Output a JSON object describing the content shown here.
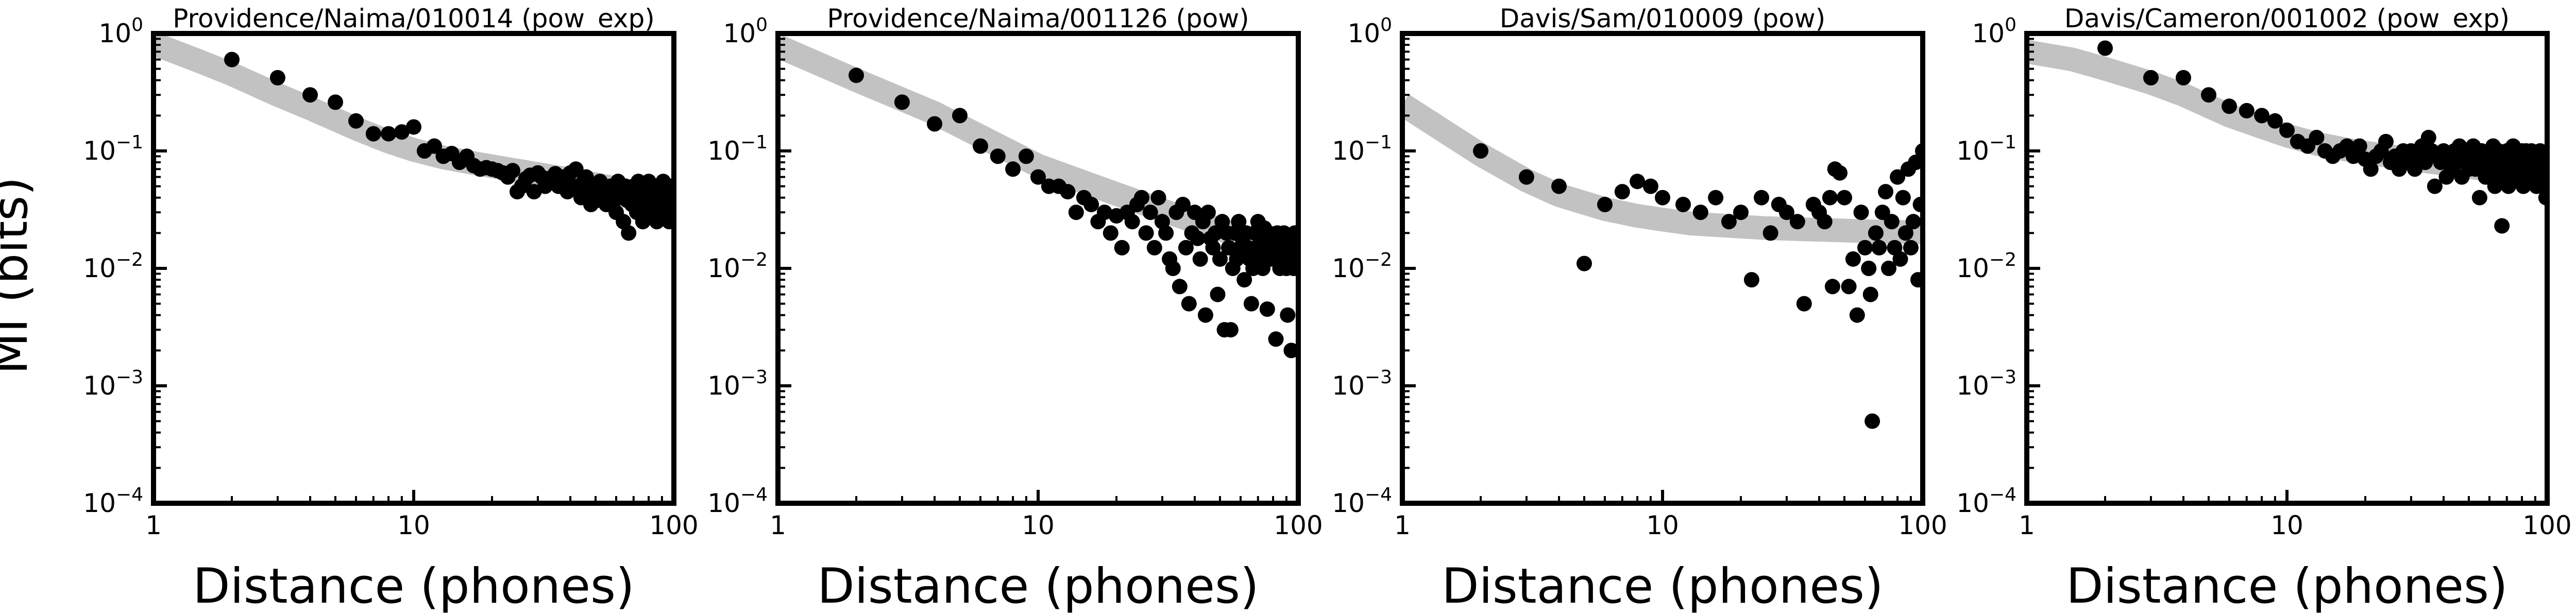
{
  "figure": {
    "ylabel": "MI (bits)"
  },
  "chart_data": [
    {
      "type": "scatter",
      "title": "Providence/Naima/010014 (pow_exp)",
      "xlabel": "Distance (phones)",
      "ylabel": "MI (bits)",
      "xscale": "log",
      "yscale": "log",
      "xlim": [
        1,
        100
      ],
      "ylim": [
        0.0001,
        1
      ],
      "x_ticks": [
        "1",
        "10",
        "100"
      ],
      "y_ticks": [
        [
          "10",
          "0"
        ],
        [
          "10",
          "−1"
        ],
        [
          "10",
          "−2"
        ],
        [
          "10",
          "−3"
        ],
        [
          "10",
          "−4"
        ]
      ],
      "fit": {
        "x": [
          1,
          1.5,
          2,
          3,
          4,
          6,
          8,
          10,
          13,
          18,
          25,
          35,
          50,
          70,
          100
        ],
        "y": [
          0.82,
          0.58,
          0.45,
          0.3,
          0.23,
          0.155,
          0.12,
          0.102,
          0.088,
          0.077,
          0.068,
          0.06,
          0.052,
          0.045,
          0.037
        ],
        "color": "#c2c2c2"
      },
      "points": {
        "x": [
          2,
          3,
          4,
          5,
          6,
          7,
          8,
          9,
          10,
          11,
          12,
          13,
          14,
          15,
          16,
          17,
          18,
          19,
          20,
          21,
          22,
          23,
          24,
          25,
          26,
          27,
          28,
          29,
          30,
          31,
          32,
          33,
          34,
          35,
          36,
          37,
          38,
          39,
          40,
          41,
          42,
          43,
          44,
          45,
          46,
          47,
          48,
          49,
          50,
          51,
          52,
          53,
          54,
          55,
          56,
          57,
          58,
          59,
          60,
          61,
          62,
          63,
          64,
          65,
          66,
          67,
          68,
          69,
          70,
          71,
          72,
          73,
          74,
          75,
          76,
          77,
          78,
          79,
          80,
          81,
          82,
          83,
          84,
          85,
          86,
          87,
          88,
          89,
          90,
          91,
          92,
          93,
          94,
          95,
          96,
          97,
          98,
          99,
          100
        ],
        "y": [
          0.6,
          0.42,
          0.3,
          0.26,
          0.18,
          0.14,
          0.14,
          0.145,
          0.16,
          0.1,
          0.11,
          0.09,
          0.095,
          0.08,
          0.09,
          0.075,
          0.07,
          0.072,
          0.07,
          0.068,
          0.065,
          0.06,
          0.068,
          0.045,
          0.05,
          0.058,
          0.062,
          0.045,
          0.065,
          0.06,
          0.05,
          0.058,
          0.055,
          0.064,
          0.05,
          0.06,
          0.055,
          0.045,
          0.065,
          0.05,
          0.07,
          0.048,
          0.04,
          0.055,
          0.06,
          0.045,
          0.035,
          0.05,
          0.042,
          0.038,
          0.055,
          0.05,
          0.045,
          0.035,
          0.04,
          0.05,
          0.045,
          0.038,
          0.03,
          0.055,
          0.045,
          0.04,
          0.025,
          0.05,
          0.038,
          0.02,
          0.045,
          0.035,
          0.05,
          0.04,
          0.03,
          0.055,
          0.045,
          0.035,
          0.025,
          0.05,
          0.04,
          0.045,
          0.055,
          0.03,
          0.04,
          0.05,
          0.035,
          0.045,
          0.025,
          0.04,
          0.05,
          0.03,
          0.038,
          0.055,
          0.045,
          0.035,
          0.03,
          0.042,
          0.025,
          0.05,
          0.035,
          0.03,
          0.045
        ]
      }
    },
    {
      "type": "scatter",
      "title": "Providence/Naima/001126 (pow)",
      "xlabel": "Distance (phones)",
      "ylabel": "",
      "xscale": "log",
      "yscale": "log",
      "xlim": [
        1,
        100
      ],
      "ylim": [
        0.0001,
        1
      ],
      "x_ticks": [
        "1",
        "10",
        "100"
      ],
      "y_ticks": [
        [
          "10",
          "0"
        ],
        [
          "10",
          "−1"
        ],
        [
          "10",
          "−2"
        ],
        [
          "10",
          "−3"
        ],
        [
          "10",
          "−4"
        ]
      ],
      "fit": {
        "x": [
          1,
          2,
          4,
          10,
          20,
          40,
          70,
          100
        ],
        "y": [
          0.78,
          0.4,
          0.21,
          0.075,
          0.043,
          0.025,
          0.017,
          0.014
        ],
        "color": "#c2c2c2"
      },
      "points": {
        "x": [
          2,
          3,
          4,
          5,
          6,
          7,
          8,
          9,
          10,
          11,
          12,
          13,
          14,
          15,
          16,
          17,
          18,
          19,
          20,
          21,
          22,
          23,
          24,
          25,
          26,
          27,
          28,
          29,
          30,
          31,
          32,
          33,
          34,
          35,
          36,
          37,
          38,
          39,
          40,
          41,
          42,
          43,
          44,
          45,
          46,
          47,
          48,
          49,
          50,
          51,
          52,
          53,
          54,
          55,
          56,
          57,
          58,
          59,
          60,
          61,
          62,
          63,
          64,
          65,
          66,
          67,
          68,
          69,
          70,
          71,
          72,
          73,
          74,
          75,
          76,
          77,
          78,
          79,
          80,
          81,
          82,
          83,
          84,
          85,
          86,
          87,
          88,
          89,
          90,
          91,
          92,
          93,
          94,
          95,
          96,
          97,
          98,
          99,
          100
        ],
        "y": [
          0.44,
          0.26,
          0.17,
          0.2,
          0.11,
          0.09,
          0.07,
          0.09,
          0.06,
          0.05,
          0.05,
          0.045,
          0.03,
          0.04,
          0.035,
          0.025,
          0.03,
          0.02,
          0.028,
          0.015,
          0.03,
          0.025,
          0.035,
          0.04,
          0.02,
          0.03,
          0.015,
          0.04,
          0.025,
          0.02,
          0.012,
          0.01,
          0.03,
          0.007,
          0.035,
          0.015,
          0.005,
          0.02,
          0.03,
          0.018,
          0.012,
          0.025,
          0.004,
          0.03,
          0.018,
          0.015,
          0.02,
          0.006,
          0.012,
          0.025,
          0.003,
          0.02,
          0.015,
          0.003,
          0.01,
          0.02,
          0.012,
          0.025,
          0.015,
          0.018,
          0.008,
          0.02,
          0.015,
          0.012,
          0.005,
          0.01,
          0.02,
          0.015,
          0.025,
          0.012,
          0.018,
          0.01,
          0.022,
          0.015,
          0.0045,
          0.02,
          0.012,
          0.018,
          0.015,
          0.012,
          0.0025,
          0.02,
          0.015,
          0.01,
          0.018,
          0.012,
          0.02,
          0.015,
          0.01,
          0.004,
          0.018,
          0.012,
          0.002,
          0.015,
          0.01,
          0.02,
          0.016,
          0.012,
          0.018
        ]
      }
    },
    {
      "type": "scatter",
      "title": "Davis/Sam/010009 (pow)",
      "xlabel": "Distance (phones)",
      "ylabel": "",
      "xscale": "log",
      "yscale": "log",
      "xlim": [
        1,
        100
      ],
      "ylim": [
        0.0001,
        1
      ],
      "x_ticks": [
        "1",
        "10",
        "100"
      ],
      "y_ticks": [
        [
          "10",
          "0"
        ],
        [
          "10",
          "−1"
        ],
        [
          "10",
          "−2"
        ],
        [
          "10",
          "−3"
        ],
        [
          "10",
          "−4"
        ]
      ],
      "fit": {
        "x": [
          1,
          1.5,
          2,
          3,
          4,
          6,
          8,
          10,
          13,
          18,
          25,
          35,
          50,
          70,
          100
        ],
        "y": [
          0.25,
          0.14,
          0.093,
          0.056,
          0.042,
          0.032,
          0.028,
          0.026,
          0.024,
          0.023,
          0.022,
          0.0215,
          0.021,
          0.0205,
          0.0203
        ],
        "color": "#c2c2c2"
      },
      "points": {
        "x": [
          2,
          3,
          4,
          5,
          6,
          7,
          8,
          9,
          10,
          12,
          14,
          16,
          18,
          20,
          22,
          24,
          26,
          28,
          30,
          33,
          35,
          38,
          40,
          42,
          44,
          45,
          46,
          48,
          50,
          52,
          54,
          56,
          58,
          60,
          62,
          63,
          64,
          66,
          68,
          70,
          72,
          74,
          76,
          78,
          80,
          82,
          84,
          86,
          88,
          90,
          92,
          94,
          96,
          98,
          100
        ],
        "y": [
          0.1,
          0.06,
          0.05,
          0.011,
          0.035,
          0.045,
          0.055,
          0.05,
          0.04,
          0.035,
          0.03,
          0.04,
          0.025,
          0.03,
          0.008,
          0.04,
          0.02,
          0.035,
          0.03,
          0.025,
          0.005,
          0.035,
          0.03,
          0.025,
          0.04,
          0.007,
          0.07,
          0.065,
          0.04,
          0.007,
          0.012,
          0.004,
          0.03,
          0.015,
          0.01,
          0.006,
          0.0005,
          0.02,
          0.015,
          0.03,
          0.045,
          0.01,
          0.025,
          0.015,
          0.06,
          0.012,
          0.04,
          0.02,
          0.07,
          0.015,
          0.025,
          0.08,
          0.008,
          0.035,
          0.1
        ]
      }
    },
    {
      "type": "scatter",
      "title": "Davis/Cameron/001002 (pow_exp)",
      "xlabel": "Distance (phones)",
      "ylabel": "",
      "xscale": "log",
      "yscale": "log",
      "xlim": [
        1,
        100
      ],
      "ylim": [
        0.0001,
        1
      ],
      "x_ticks": [
        "1",
        "10",
        "100"
      ],
      "y_ticks": [
        [
          "10",
          "0"
        ],
        [
          "10",
          "−1"
        ],
        [
          "10",
          "−2"
        ],
        [
          "10",
          "−3"
        ],
        [
          "10",
          "−4"
        ]
      ],
      "fit": {
        "x": [
          1,
          1.5,
          2,
          3,
          4,
          6,
          8,
          10,
          13,
          18,
          25,
          35,
          50,
          70,
          100
        ],
        "y": [
          0.7,
          0.6,
          0.5,
          0.38,
          0.3,
          0.2,
          0.16,
          0.135,
          0.115,
          0.1,
          0.09,
          0.081,
          0.073,
          0.066,
          0.06
        ],
        "color": "#c2c2c2"
      },
      "points": {
        "x": [
          2,
          3,
          4,
          5,
          6,
          7,
          8,
          9,
          10,
          11,
          12,
          13,
          14,
          15,
          16,
          17,
          18,
          19,
          20,
          21,
          22,
          23,
          24,
          25,
          26,
          27,
          28,
          29,
          30,
          31,
          32,
          33,
          34,
          35,
          36,
          37,
          38,
          39,
          40,
          41,
          42,
          43,
          44,
          45,
          46,
          47,
          48,
          49,
          50,
          51,
          52,
          53,
          54,
          55,
          56,
          57,
          58,
          59,
          60,
          61,
          62,
          63,
          64,
          65,
          66,
          67,
          68,
          69,
          70,
          71,
          72,
          73,
          74,
          75,
          76,
          77,
          78,
          79,
          80,
          81,
          82,
          83,
          84,
          85,
          86,
          87,
          88,
          89,
          90,
          91,
          92,
          93,
          94,
          95,
          96,
          97,
          98,
          99,
          100
        ],
        "y": [
          0.75,
          0.42,
          0.42,
          0.3,
          0.24,
          0.22,
          0.2,
          0.18,
          0.15,
          0.12,
          0.11,
          0.13,
          0.1,
          0.09,
          0.1,
          0.11,
          0.09,
          0.11,
          0.085,
          0.07,
          0.09,
          0.1,
          0.12,
          0.08,
          0.09,
          0.07,
          0.1,
          0.08,
          0.1,
          0.07,
          0.09,
          0.11,
          0.08,
          0.13,
          0.1,
          0.05,
          0.09,
          0.08,
          0.1,
          0.06,
          0.09,
          0.07,
          0.1,
          0.08,
          0.11,
          0.06,
          0.09,
          0.1,
          0.07,
          0.08,
          0.11,
          0.07,
          0.09,
          0.04,
          0.1,
          0.08,
          0.06,
          0.09,
          0.1,
          0.07,
          0.11,
          0.05,
          0.08,
          0.1,
          0.06,
          0.023,
          0.09,
          0.07,
          0.1,
          0.05,
          0.08,
          0.09,
          0.11,
          0.06,
          0.08,
          0.1,
          0.07,
          0.09,
          0.1,
          0.05,
          0.08,
          0.1,
          0.06,
          0.09,
          0.07,
          0.1,
          0.08,
          0.06,
          0.09,
          0.05,
          0.08,
          0.07,
          0.1,
          0.06,
          0.08,
          0.05,
          0.07,
          0.04,
          0.06
        ]
      }
    }
  ]
}
